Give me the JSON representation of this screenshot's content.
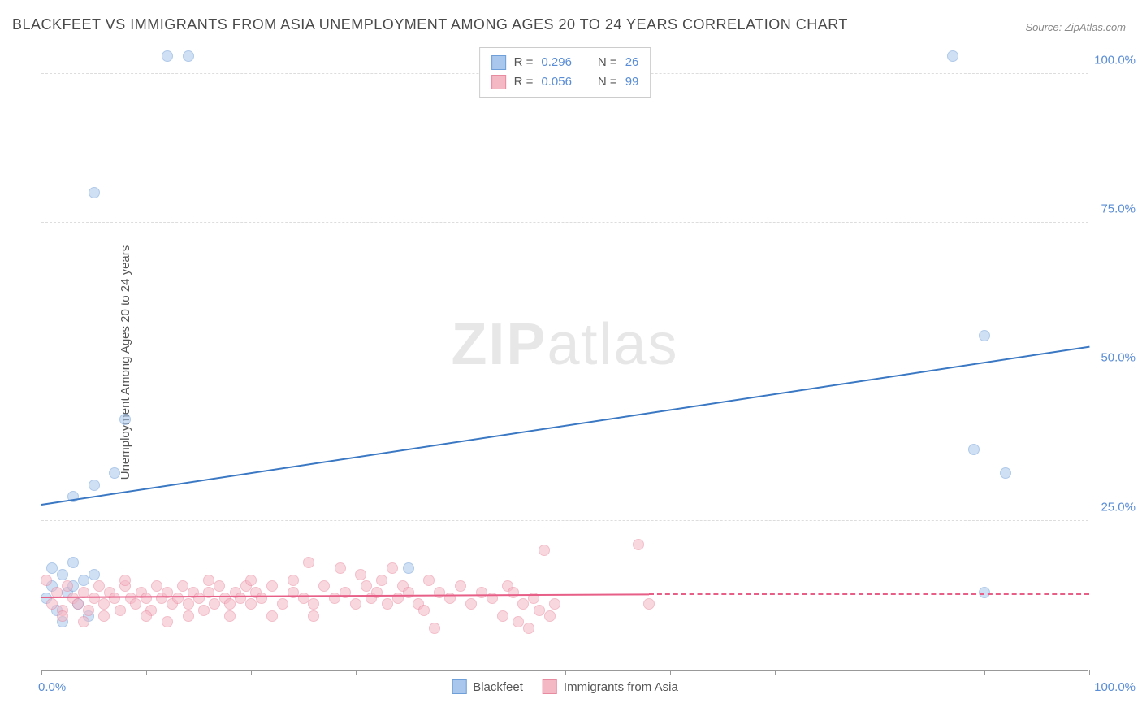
{
  "title": "BLACKFEET VS IMMIGRANTS FROM ASIA UNEMPLOYMENT AMONG AGES 20 TO 24 YEARS CORRELATION CHART",
  "source": "Source: ZipAtlas.com",
  "watermark_bold": "ZIP",
  "watermark_light": "atlas",
  "y_axis_label": "Unemployment Among Ages 20 to 24 years",
  "chart": {
    "type": "scatter",
    "xlim": [
      0,
      100
    ],
    "ylim": [
      0,
      105
    ],
    "y_ticks": [
      25,
      50,
      75,
      100
    ],
    "y_tick_labels": [
      "25.0%",
      "50.0%",
      "75.0%",
      "100.0%"
    ],
    "x_ticks": [
      0,
      10,
      20,
      30,
      40,
      50,
      60,
      70,
      80,
      90,
      100
    ],
    "x_min_label": "0.0%",
    "x_max_label": "100.0%",
    "background_color": "#ffffff",
    "grid_color": "#dddddd",
    "grid_dash": "4,4",
    "axis_color": "#999999",
    "marker_size": 14,
    "marker_opacity": 0.55,
    "line_width": 2
  },
  "series": [
    {
      "name": "Blackfeet",
      "color_fill": "#a9c6ec",
      "color_stroke": "#6f9fd8",
      "line_color": "#3b78c4",
      "trend": {
        "x1": 0,
        "y1": 27.5,
        "x2": 100,
        "y2": 54
      },
      "R_label": "R  = ",
      "R": "0.296",
      "N_label": "N  = ",
      "N": "26",
      "points": [
        [
          0.5,
          12
        ],
        [
          1,
          14
        ],
        [
          1.5,
          10
        ],
        [
          2,
          16
        ],
        [
          2.5,
          13
        ],
        [
          3,
          18
        ],
        [
          3.5,
          11
        ],
        [
          4,
          15
        ],
        [
          4.5,
          9
        ],
        [
          1,
          17
        ],
        [
          3,
          14
        ],
        [
          5,
          16
        ],
        [
          3,
          29
        ],
        [
          5,
          31
        ],
        [
          7,
          33
        ],
        [
          8,
          42
        ],
        [
          5,
          80
        ],
        [
          12,
          103
        ],
        [
          14,
          103
        ],
        [
          87,
          103
        ],
        [
          89,
          37
        ],
        [
          92,
          33
        ],
        [
          90,
          56
        ],
        [
          90,
          13
        ],
        [
          35,
          17
        ],
        [
          2,
          8
        ]
      ]
    },
    {
      "name": "Immigrants from Asia",
      "color_fill": "#f4b8c5",
      "color_stroke": "#e88aa0",
      "line_color": "#e75e87",
      "trend": {
        "x1": 0,
        "y1": 12,
        "x2": 58,
        "y2": 12.5
      },
      "trend_dash": {
        "x1": 58,
        "y1": 12.5,
        "x2": 100,
        "y2": 12.5
      },
      "R_label": "R  = ",
      "R": "0.056",
      "N_label": "N  = ",
      "N": "99",
      "points": [
        [
          1,
          11
        ],
        [
          1.5,
          13
        ],
        [
          2,
          10
        ],
        [
          2.5,
          14
        ],
        [
          3,
          12
        ],
        [
          3.5,
          11
        ],
        [
          4,
          13
        ],
        [
          4.5,
          10
        ],
        [
          5,
          12
        ],
        [
          5.5,
          14
        ],
        [
          6,
          11
        ],
        [
          6.5,
          13
        ],
        [
          7,
          12
        ],
        [
          7.5,
          10
        ],
        [
          8,
          14
        ],
        [
          8.5,
          12
        ],
        [
          9,
          11
        ],
        [
          9.5,
          13
        ],
        [
          10,
          12
        ],
        [
          10.5,
          10
        ],
        [
          11,
          14
        ],
        [
          11.5,
          12
        ],
        [
          12,
          13
        ],
        [
          12.5,
          11
        ],
        [
          13,
          12
        ],
        [
          13.5,
          14
        ],
        [
          14,
          11
        ],
        [
          14.5,
          13
        ],
        [
          15,
          12
        ],
        [
          15.5,
          10
        ],
        [
          16,
          13
        ],
        [
          16.5,
          11
        ],
        [
          17,
          14
        ],
        [
          17.5,
          12
        ],
        [
          18,
          11
        ],
        [
          18.5,
          13
        ],
        [
          19,
          12
        ],
        [
          19.5,
          14
        ],
        [
          20,
          11
        ],
        [
          20.5,
          13
        ],
        [
          21,
          12
        ],
        [
          22,
          14
        ],
        [
          23,
          11
        ],
        [
          24,
          13
        ],
        [
          25,
          12
        ],
        [
          25.5,
          18
        ],
        [
          26,
          11
        ],
        [
          27,
          14
        ],
        [
          28,
          12
        ],
        [
          28.5,
          17
        ],
        [
          29,
          13
        ],
        [
          30,
          11
        ],
        [
          30.5,
          16
        ],
        [
          31,
          14
        ],
        [
          31.5,
          12
        ],
        [
          32,
          13
        ],
        [
          32.5,
          15
        ],
        [
          33,
          11
        ],
        [
          33.5,
          17
        ],
        [
          34,
          12
        ],
        [
          34.5,
          14
        ],
        [
          35,
          13
        ],
        [
          36,
          11
        ],
        [
          36.5,
          10
        ],
        [
          37,
          15
        ],
        [
          37.5,
          7
        ],
        [
          38,
          13
        ],
        [
          39,
          12
        ],
        [
          40,
          14
        ],
        [
          41,
          11
        ],
        [
          42,
          13
        ],
        [
          43,
          12
        ],
        [
          44,
          9
        ],
        [
          44.5,
          14
        ],
        [
          45,
          13
        ],
        [
          45.5,
          8
        ],
        [
          46,
          11
        ],
        [
          46.5,
          7
        ],
        [
          47,
          12
        ],
        [
          48,
          20
        ],
        [
          47.5,
          10
        ],
        [
          48.5,
          9
        ],
        [
          49,
          11
        ],
        [
          57,
          21
        ],
        [
          58,
          11
        ],
        [
          0.5,
          15
        ],
        [
          2,
          9
        ],
        [
          4,
          8
        ],
        [
          6,
          9
        ],
        [
          8,
          15
        ],
        [
          10,
          9
        ],
        [
          12,
          8
        ],
        [
          14,
          9
        ],
        [
          16,
          15
        ],
        [
          18,
          9
        ],
        [
          20,
          15
        ],
        [
          22,
          9
        ],
        [
          24,
          15
        ],
        [
          26,
          9
        ]
      ]
    }
  ],
  "legend_bottom": [
    {
      "swatch_fill": "#a9c6ec",
      "swatch_stroke": "#6f9fd8",
      "label": "Blackfeet"
    },
    {
      "swatch_fill": "#f4b8c5",
      "swatch_stroke": "#e88aa0",
      "label": "Immigrants from Asia"
    }
  ]
}
